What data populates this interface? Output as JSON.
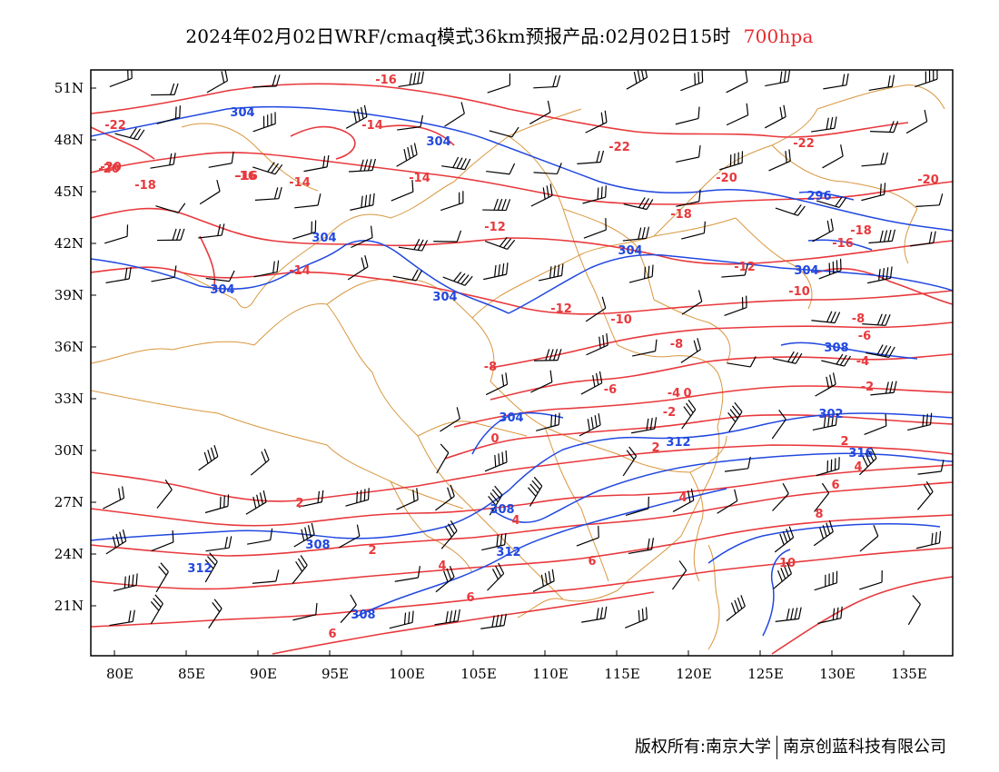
{
  "title": {
    "main": "2024年02月02日WRF/cmaq模式36km预报产品:02月02日15时",
    "level": "700hpa"
  },
  "colors": {
    "temperature": "#e8383c",
    "height": "#2148e0",
    "border": "#d9973f",
    "wind": "#000000",
    "frame": "#000000"
  },
  "map": {
    "lon_ticks": [
      "80E",
      "85E",
      "90E",
      "95E",
      "100E",
      "105E",
      "110E",
      "115E",
      "120E",
      "125E",
      "130E",
      "135E"
    ],
    "lat_ticks": [
      "51N",
      "48N",
      "45N",
      "42N",
      "39N",
      "36N",
      "33N",
      "30N",
      "27N",
      "24N",
      "21N"
    ],
    "temperature_labels": [
      "-16",
      "-22",
      "-20",
      "-18",
      "-16",
      "-14",
      "-14",
      "-14",
      "-14",
      "-12",
      "-12",
      "-10",
      "-8",
      "-8",
      "-6",
      "-4",
      "-2",
      "0",
      "0",
      "2",
      "2",
      "2",
      "4",
      "4",
      "4",
      "6",
      "6",
      "6",
      "-22",
      "-20",
      "-18",
      "-16",
      "-12",
      "-10",
      "-8",
      "-6",
      "-4",
      "-2",
      "2",
      "4",
      "6",
      "8",
      "10",
      "-20",
      "-22",
      "-20",
      "-18",
      "-16"
    ],
    "height_labels": [
      "304",
      "304",
      "304",
      "304",
      "304",
      "304",
      "304",
      "308",
      "304",
      "308",
      "312",
      "308",
      "312",
      "312",
      "302",
      "316",
      "296",
      "308"
    ]
  },
  "footer": {
    "left": "版权所有:南京大学",
    "right": "南京创蓝科技有限公司"
  }
}
